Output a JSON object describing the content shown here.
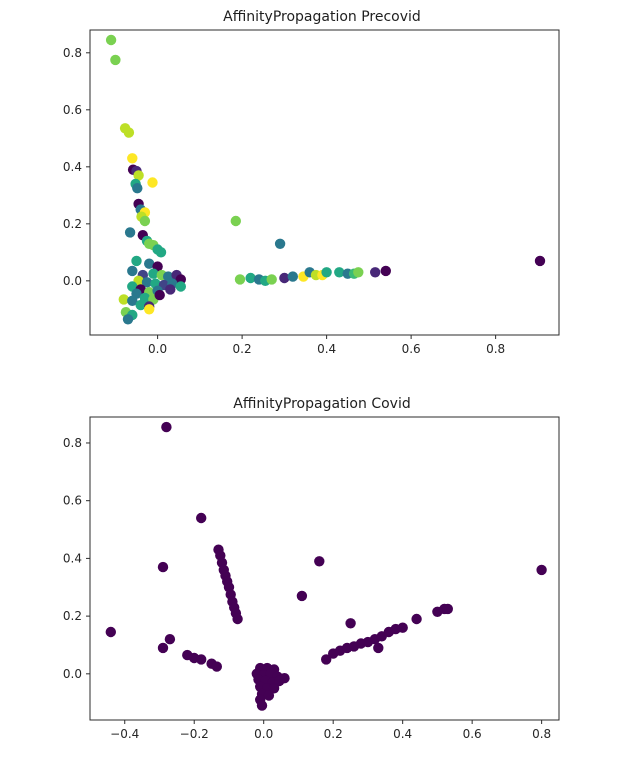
{
  "chart_data": [
    {
      "type": "scatter",
      "title": "AffinityPropagation Precovid",
      "xlabel": "",
      "ylabel": "",
      "xlim": [
        -0.16,
        0.95
      ],
      "ylim": [
        -0.19,
        0.88
      ],
      "xticks": [
        0.0,
        0.2,
        0.4,
        0.6,
        0.8
      ],
      "xtick_labels": [
        "0.0",
        "0.2",
        "0.4",
        "0.6",
        "0.8"
      ],
      "yticks": [
        0.0,
        0.2,
        0.4,
        0.6,
        0.8
      ],
      "ytick_labels": [
        "0.0",
        "0.2",
        "0.4",
        "0.6",
        "0.8"
      ],
      "grid": false,
      "points": [
        {
          "x": -0.11,
          "y": 0.845,
          "color": "#7ad151"
        },
        {
          "x": -0.1,
          "y": 0.775,
          "color": "#7ad151"
        },
        {
          "x": -0.077,
          "y": 0.535,
          "color": "#bddf26"
        },
        {
          "x": -0.068,
          "y": 0.52,
          "color": "#bddf26"
        },
        {
          "x": -0.06,
          "y": 0.43,
          "color": "#fde725"
        },
        {
          "x": -0.058,
          "y": 0.39,
          "color": "#440154"
        },
        {
          "x": -0.05,
          "y": 0.385,
          "color": "#482878"
        },
        {
          "x": -0.045,
          "y": 0.37,
          "color": "#bddf26"
        },
        {
          "x": -0.012,
          "y": 0.345,
          "color": "#fde725"
        },
        {
          "x": -0.052,
          "y": 0.34,
          "color": "#22a884"
        },
        {
          "x": -0.048,
          "y": 0.325,
          "color": "#2a788e"
        },
        {
          "x": -0.045,
          "y": 0.27,
          "color": "#440154"
        },
        {
          "x": -0.04,
          "y": 0.25,
          "color": "#2a788e"
        },
        {
          "x": -0.03,
          "y": 0.24,
          "color": "#fde725"
        },
        {
          "x": -0.038,
          "y": 0.225,
          "color": "#bddf26"
        },
        {
          "x": -0.03,
          "y": 0.21,
          "color": "#7ad151"
        },
        {
          "x": -0.065,
          "y": 0.17,
          "color": "#2a788e"
        },
        {
          "x": -0.035,
          "y": 0.16,
          "color": "#440154"
        },
        {
          "x": -0.025,
          "y": 0.14,
          "color": "#22a884"
        },
        {
          "x": -0.02,
          "y": 0.13,
          "color": "#7ad151"
        },
        {
          "x": -0.01,
          "y": 0.125,
          "color": "#7ad151"
        },
        {
          "x": 0.0,
          "y": 0.11,
          "color": "#22a884"
        },
        {
          "x": 0.008,
          "y": 0.1,
          "color": "#22a884"
        },
        {
          "x": -0.05,
          "y": 0.07,
          "color": "#22a884"
        },
        {
          "x": -0.02,
          "y": 0.06,
          "color": "#2a788e"
        },
        {
          "x": 0.0,
          "y": 0.05,
          "color": "#440154"
        },
        {
          "x": -0.06,
          "y": 0.035,
          "color": "#2a788e"
        },
        {
          "x": -0.035,
          "y": 0.02,
          "color": "#414487"
        },
        {
          "x": -0.01,
          "y": 0.025,
          "color": "#22a884"
        },
        {
          "x": 0.01,
          "y": 0.02,
          "color": "#7ad151"
        },
        {
          "x": 0.025,
          "y": 0.015,
          "color": "#2a788e"
        },
        {
          "x": 0.045,
          "y": 0.02,
          "color": "#482878"
        },
        {
          "x": 0.055,
          "y": 0.005,
          "color": "#440154"
        },
        {
          "x": -0.045,
          "y": 0.0,
          "color": "#bddf26"
        },
        {
          "x": -0.025,
          "y": -0.005,
          "color": "#2a788e"
        },
        {
          "x": -0.005,
          "y": -0.01,
          "color": "#22a884"
        },
        {
          "x": 0.015,
          "y": -0.015,
          "color": "#414487"
        },
        {
          "x": 0.035,
          "y": -0.01,
          "color": "#2a788e"
        },
        {
          "x": 0.055,
          "y": -0.02,
          "color": "#22a884"
        },
        {
          "x": -0.06,
          "y": -0.02,
          "color": "#22a884"
        },
        {
          "x": -0.04,
          "y": -0.03,
          "color": "#440154"
        },
        {
          "x": -0.02,
          "y": -0.04,
          "color": "#7ad151"
        },
        {
          "x": 0.0,
          "y": -0.035,
          "color": "#2a788e"
        },
        {
          "x": 0.03,
          "y": -0.03,
          "color": "#482878"
        },
        {
          "x": -0.05,
          "y": -0.045,
          "color": "#2a788e"
        },
        {
          "x": -0.03,
          "y": -0.06,
          "color": "#22a884"
        },
        {
          "x": -0.01,
          "y": -0.065,
          "color": "#7ad151"
        },
        {
          "x": 0.005,
          "y": -0.05,
          "color": "#440154"
        },
        {
          "x": -0.08,
          "y": -0.065,
          "color": "#bddf26"
        },
        {
          "x": -0.06,
          "y": -0.07,
          "color": "#2a788e"
        },
        {
          "x": -0.04,
          "y": -0.085,
          "color": "#22a884"
        },
        {
          "x": -0.02,
          "y": -0.09,
          "color": "#482878"
        },
        {
          "x": -0.02,
          "y": -0.1,
          "color": "#fde725"
        },
        {
          "x": -0.075,
          "y": -0.11,
          "color": "#7ad151"
        },
        {
          "x": -0.06,
          "y": -0.12,
          "color": "#22a884"
        },
        {
          "x": -0.07,
          "y": -0.135,
          "color": "#2a788e"
        },
        {
          "x": 0.185,
          "y": 0.21,
          "color": "#7ad151"
        },
        {
          "x": 0.29,
          "y": 0.13,
          "color": "#2a788e"
        },
        {
          "x": 0.195,
          "y": 0.005,
          "color": "#7ad151"
        },
        {
          "x": 0.22,
          "y": 0.01,
          "color": "#22a884"
        },
        {
          "x": 0.24,
          "y": 0.005,
          "color": "#2a788e"
        },
        {
          "x": 0.255,
          "y": 0.0,
          "color": "#22a884"
        },
        {
          "x": 0.27,
          "y": 0.005,
          "color": "#7ad151"
        },
        {
          "x": 0.3,
          "y": 0.01,
          "color": "#482878"
        },
        {
          "x": 0.32,
          "y": 0.015,
          "color": "#2a788e"
        },
        {
          "x": 0.345,
          "y": 0.015,
          "color": "#fde725"
        },
        {
          "x": 0.36,
          "y": 0.03,
          "color": "#2a788e"
        },
        {
          "x": 0.375,
          "y": 0.02,
          "color": "#bddf26"
        },
        {
          "x": 0.39,
          "y": 0.02,
          "color": "#fde725"
        },
        {
          "x": 0.4,
          "y": 0.03,
          "color": "#22a884"
        },
        {
          "x": 0.43,
          "y": 0.03,
          "color": "#22a884"
        },
        {
          "x": 0.45,
          "y": 0.025,
          "color": "#2a788e"
        },
        {
          "x": 0.465,
          "y": 0.025,
          "color": "#3bbb75"
        },
        {
          "x": 0.475,
          "y": 0.03,
          "color": "#7ad151"
        },
        {
          "x": 0.515,
          "y": 0.03,
          "color": "#482878"
        },
        {
          "x": 0.54,
          "y": 0.035,
          "color": "#440154"
        },
        {
          "x": 0.905,
          "y": 0.07,
          "color": "#440154"
        }
      ]
    },
    {
      "type": "scatter",
      "title": "AffinityPropagation Covid",
      "xlabel": "",
      "ylabel": "",
      "xlim": [
        -0.5,
        0.85
      ],
      "ylim": [
        -0.16,
        0.89
      ],
      "xticks": [
        -0.4,
        -0.2,
        0.0,
        0.2,
        0.4,
        0.6,
        0.8
      ],
      "xtick_labels": [
        "−0.4",
        "−0.2",
        "0.0",
        "0.2",
        "0.4",
        "0.6",
        "0.8"
      ],
      "yticks": [
        0.0,
        0.2,
        0.4,
        0.6,
        0.8
      ],
      "ytick_labels": [
        "0.0",
        "0.2",
        "0.4",
        "0.6",
        "0.8"
      ],
      "grid": false,
      "points": [
        {
          "x": -0.28,
          "y": 0.855,
          "color": "#440154"
        },
        {
          "x": -0.18,
          "y": 0.54,
          "color": "#440154"
        },
        {
          "x": -0.13,
          "y": 0.43,
          "color": "#440154"
        },
        {
          "x": -0.125,
          "y": 0.41,
          "color": "#440154"
        },
        {
          "x": -0.12,
          "y": 0.385,
          "color": "#440154"
        },
        {
          "x": -0.115,
          "y": 0.36,
          "color": "#440154"
        },
        {
          "x": -0.11,
          "y": 0.34,
          "color": "#440154"
        },
        {
          "x": -0.105,
          "y": 0.32,
          "color": "#440154"
        },
        {
          "x": -0.1,
          "y": 0.3,
          "color": "#440154"
        },
        {
          "x": -0.095,
          "y": 0.275,
          "color": "#440154"
        },
        {
          "x": -0.09,
          "y": 0.25,
          "color": "#440154"
        },
        {
          "x": -0.085,
          "y": 0.23,
          "color": "#440154"
        },
        {
          "x": -0.08,
          "y": 0.21,
          "color": "#440154"
        },
        {
          "x": -0.075,
          "y": 0.19,
          "color": "#440154"
        },
        {
          "x": -0.29,
          "y": 0.37,
          "color": "#440154"
        },
        {
          "x": -0.44,
          "y": 0.145,
          "color": "#440154"
        },
        {
          "x": -0.27,
          "y": 0.12,
          "color": "#440154"
        },
        {
          "x": -0.29,
          "y": 0.09,
          "color": "#440154"
        },
        {
          "x": -0.22,
          "y": 0.065,
          "color": "#440154"
        },
        {
          "x": -0.2,
          "y": 0.055,
          "color": "#440154"
        },
        {
          "x": -0.18,
          "y": 0.05,
          "color": "#440154"
        },
        {
          "x": -0.15,
          "y": 0.035,
          "color": "#440154"
        },
        {
          "x": -0.135,
          "y": 0.025,
          "color": "#440154"
        },
        {
          "x": 0.16,
          "y": 0.39,
          "color": "#440154"
        },
        {
          "x": 0.11,
          "y": 0.27,
          "color": "#440154"
        },
        {
          "x": 0.25,
          "y": 0.175,
          "color": "#440154"
        },
        {
          "x": 0.8,
          "y": 0.36,
          "color": "#440154"
        },
        {
          "x": 0.18,
          "y": 0.05,
          "color": "#440154"
        },
        {
          "x": 0.2,
          "y": 0.07,
          "color": "#440154"
        },
        {
          "x": 0.22,
          "y": 0.08,
          "color": "#440154"
        },
        {
          "x": 0.24,
          "y": 0.09,
          "color": "#440154"
        },
        {
          "x": 0.26,
          "y": 0.095,
          "color": "#440154"
        },
        {
          "x": 0.28,
          "y": 0.105,
          "color": "#440154"
        },
        {
          "x": 0.3,
          "y": 0.11,
          "color": "#440154"
        },
        {
          "x": 0.32,
          "y": 0.12,
          "color": "#440154"
        },
        {
          "x": 0.33,
          "y": 0.09,
          "color": "#440154"
        },
        {
          "x": 0.34,
          "y": 0.13,
          "color": "#440154"
        },
        {
          "x": 0.36,
          "y": 0.145,
          "color": "#440154"
        },
        {
          "x": 0.38,
          "y": 0.155,
          "color": "#440154"
        },
        {
          "x": 0.4,
          "y": 0.16,
          "color": "#440154"
        },
        {
          "x": 0.44,
          "y": 0.19,
          "color": "#440154"
        },
        {
          "x": 0.5,
          "y": 0.215,
          "color": "#440154"
        },
        {
          "x": 0.52,
          "y": 0.225,
          "color": "#440154"
        },
        {
          "x": 0.53,
          "y": 0.225,
          "color": "#440154"
        },
        {
          "x": -0.01,
          "y": 0.02,
          "color": "#440154"
        },
        {
          "x": 0.01,
          "y": 0.02,
          "color": "#440154"
        },
        {
          "x": 0.03,
          "y": 0.015,
          "color": "#440154"
        },
        {
          "x": -0.02,
          "y": 0.0,
          "color": "#440154"
        },
        {
          "x": 0.0,
          "y": -0.005,
          "color": "#440154"
        },
        {
          "x": 0.02,
          "y": 0.0,
          "color": "#440154"
        },
        {
          "x": 0.04,
          "y": -0.01,
          "color": "#440154"
        },
        {
          "x": 0.06,
          "y": -0.015,
          "color": "#440154"
        },
        {
          "x": -0.015,
          "y": -0.02,
          "color": "#440154"
        },
        {
          "x": 0.005,
          "y": -0.025,
          "color": "#440154"
        },
        {
          "x": 0.025,
          "y": -0.03,
          "color": "#440154"
        },
        {
          "x": 0.045,
          "y": -0.025,
          "color": "#440154"
        },
        {
          "x": -0.01,
          "y": -0.045,
          "color": "#440154"
        },
        {
          "x": 0.01,
          "y": -0.05,
          "color": "#440154"
        },
        {
          "x": 0.03,
          "y": -0.05,
          "color": "#440154"
        },
        {
          "x": -0.005,
          "y": -0.07,
          "color": "#440154"
        },
        {
          "x": 0.015,
          "y": -0.075,
          "color": "#440154"
        },
        {
          "x": -0.01,
          "y": -0.09,
          "color": "#440154"
        },
        {
          "x": -0.005,
          "y": -0.11,
          "color": "#440154"
        }
      ]
    }
  ]
}
